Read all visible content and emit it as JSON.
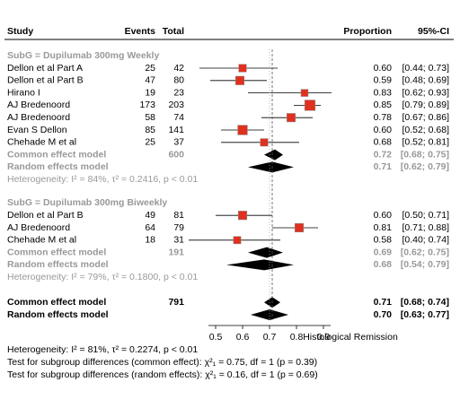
{
  "chart_data": {
    "type": "forest",
    "columns": {
      "study": "Study",
      "events": "Events",
      "total": "Total",
      "proportion": "Proportion",
      "ci": "95%-CI"
    },
    "xlabel": "Histological Remission",
    "xlim": [
      0.5,
      0.9
    ],
    "xticks": [
      0.5,
      0.6,
      0.7,
      0.8,
      0.9
    ],
    "square_color": "#e0301e",
    "groups": [
      {
        "name": "SubG = Dupilumab 300mg Weekly",
        "studies": [
          {
            "study": "Dellon et al Part A",
            "events": 25,
            "total": 42,
            "est": 0.6,
            "lower": 0.44,
            "upper": 0.73,
            "est_label": "0.60",
            "ci_label": "[0.44; 0.73]"
          },
          {
            "study": "Dellon et al Part B",
            "events": 47,
            "total": 80,
            "est": 0.59,
            "lower": 0.48,
            "upper": 0.69,
            "est_label": "0.59",
            "ci_label": "[0.48; 0.69]"
          },
          {
            "study": "Hirano I",
            "events": 19,
            "total": 23,
            "est": 0.83,
            "lower": 0.62,
            "upper": 0.93,
            "est_label": "0.83",
            "ci_label": "[0.62; 0.93]"
          },
          {
            "study": "AJ Bredenoord",
            "events": 173,
            "total": 203,
            "est": 0.85,
            "lower": 0.79,
            "upper": 0.89,
            "est_label": "0.85",
            "ci_label": "[0.79; 0.89]"
          },
          {
            "study": "AJ Bredenoord",
            "events": 58,
            "total": 74,
            "est": 0.78,
            "lower": 0.67,
            "upper": 0.86,
            "est_label": "0.78",
            "ci_label": "[0.67; 0.86]"
          },
          {
            "study": "Evan S Dellon",
            "events": 85,
            "total": 141,
            "est": 0.6,
            "lower": 0.52,
            "upper": 0.68,
            "est_label": "0.60",
            "ci_label": "[0.52; 0.68]"
          },
          {
            "study": "Chehade M et al",
            "events": 25,
            "total": 37,
            "est": 0.68,
            "lower": 0.52,
            "upper": 0.81,
            "est_label": "0.68",
            "ci_label": "[0.52; 0.81]"
          }
        ],
        "common": {
          "label": "Common effect model",
          "total": 600,
          "est": 0.72,
          "lower": 0.68,
          "upper": 0.75,
          "est_label": "0.72",
          "ci_label": "[0.68; 0.75]"
        },
        "random": {
          "label": "Random effects model",
          "est": 0.71,
          "lower": 0.62,
          "upper": 0.79,
          "est_label": "0.71",
          "ci_label": "[0.62; 0.79]"
        },
        "heterogeneity": "Heterogeneity: I² = 84%, τ² = 0.2416, p < 0.01"
      },
      {
        "name": "SubG = Dupilumab 300mg Biweekly",
        "studies": [
          {
            "study": "Dellon et al Part B",
            "events": 49,
            "total": 81,
            "est": 0.6,
            "lower": 0.5,
            "upper": 0.71,
            "est_label": "0.60",
            "ci_label": "[0.50; 0.71]"
          },
          {
            "study": "AJ Bredenoord",
            "events": 64,
            "total": 79,
            "est": 0.81,
            "lower": 0.71,
            "upper": 0.88,
            "est_label": "0.81",
            "ci_label": "[0.71; 0.88]"
          },
          {
            "study": "Chehade M et al",
            "events": 18,
            "total": 31,
            "est": 0.58,
            "lower": 0.4,
            "upper": 0.74,
            "est_label": "0.58",
            "ci_label": "[0.40; 0.74]"
          }
        ],
        "common": {
          "label": "Common effect model",
          "total": 191,
          "est": 0.69,
          "lower": 0.62,
          "upper": 0.75,
          "est_label": "0.69",
          "ci_label": "[0.62; 0.75]"
        },
        "random": {
          "label": "Random effects model",
          "est": 0.68,
          "lower": 0.54,
          "upper": 0.79,
          "est_label": "0.68",
          "ci_label": "[0.54; 0.79]"
        },
        "heterogeneity": "Heterogeneity: I² = 79%, τ² = 0.1800, p < 0.01"
      }
    ],
    "overall": {
      "common": {
        "label": "Common effect model",
        "total": 791,
        "est": 0.71,
        "lower": 0.68,
        "upper": 0.74,
        "est_label": "0.71",
        "ci_label": "[0.68; 0.74]"
      },
      "random": {
        "label": "Random effects model",
        "est": 0.7,
        "lower": 0.63,
        "upper": 0.77,
        "est_label": "0.70",
        "ci_label": "[0.63; 0.77]"
      },
      "heterogeneity": "Heterogeneity: I² = 81%, τ² = 0.2274, p < 0.01"
    },
    "tests": [
      "Test for subgroup differences (common effect): χ²₁ = 0.75, df = 1 (p = 0.39)",
      "Test for subgroup differences (random effects): χ²₁ = 0.16, df = 1 (p = 0.69)"
    ]
  }
}
